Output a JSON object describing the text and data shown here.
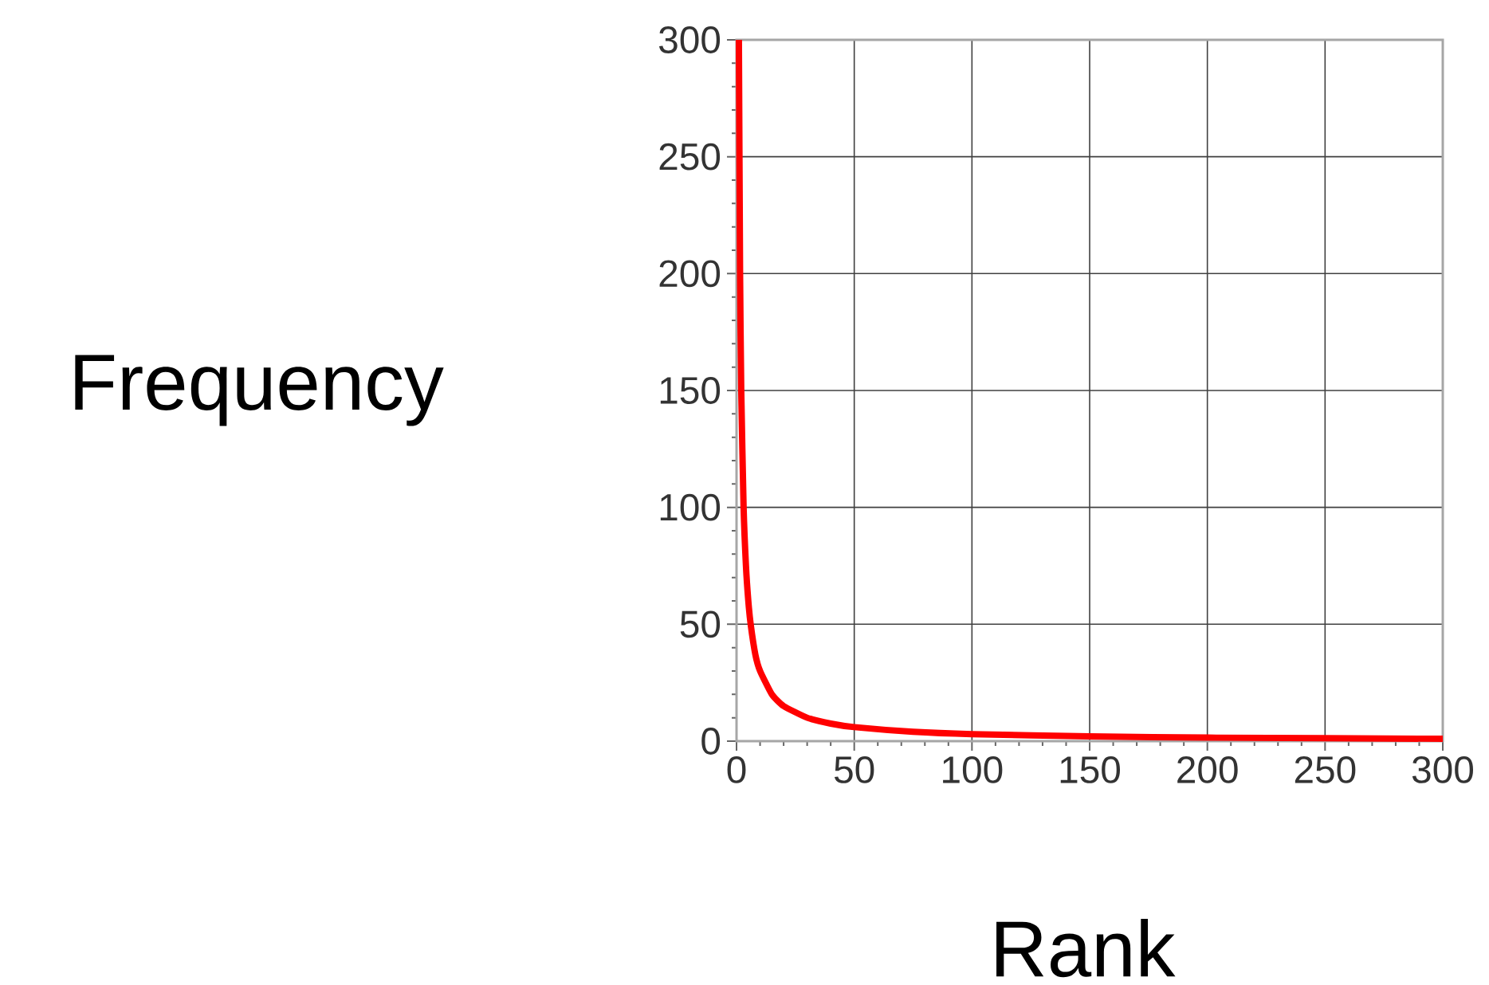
{
  "chart_data": {
    "type": "line",
    "xlabel": "Rank",
    "ylabel": "Frequency",
    "x": [
      1,
      1.5,
      2,
      3,
      4,
      5,
      6,
      8,
      10,
      15,
      20,
      30,
      40,
      50,
      75,
      100,
      150,
      200,
      300
    ],
    "series": [
      {
        "color": "#ff0000",
        "values": [
          300,
          200,
          150,
          100,
          75,
          60,
          50,
          37,
          30,
          20,
          15,
          10,
          7.5,
          6,
          4,
          3,
          2,
          1.5,
          1
        ]
      }
    ],
    "xlim": [
      0,
      300
    ],
    "ylim": [
      0,
      300
    ],
    "xticks": [
      0,
      50,
      100,
      150,
      200,
      250,
      300
    ],
    "yticks": [
      0,
      50,
      100,
      150,
      200,
      250,
      300
    ],
    "grid": true,
    "marker": "none",
    "line_style": "solid"
  }
}
